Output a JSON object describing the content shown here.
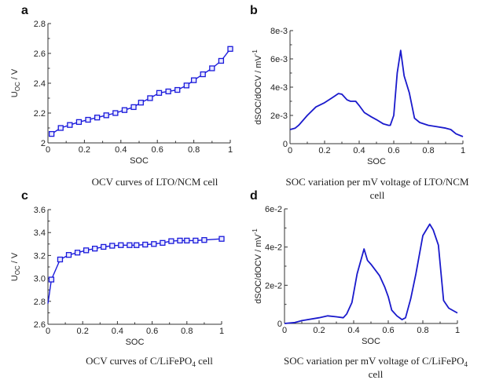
{
  "chart_data": [
    {
      "panel_label": "a",
      "type": "line",
      "markers": "square",
      "color": "#1a1adb",
      "xlabel": "SOC",
      "ylabel": {
        "main": "U",
        "sub": "OC",
        "rest": " / V"
      },
      "caption": [
        "OCV curves of LTO/NCM cell"
      ],
      "xlim": [
        0,
        1
      ],
      "ylim": [
        2,
        2.8
      ],
      "xticks": [
        0,
        0.2,
        0.4,
        0.6,
        0.8,
        1
      ],
      "xtick_labels": [
        "0",
        "0.2",
        "0.4",
        "0.6",
        "0.8",
        "1"
      ],
      "yticks": [
        2,
        2.2,
        2.4,
        2.6,
        2.8
      ],
      "ytick_labels": [
        "2",
        "2.2",
        "2.4",
        "2.6",
        "2.8"
      ],
      "grid": false,
      "x": [
        0.02,
        0.07,
        0.12,
        0.17,
        0.22,
        0.27,
        0.32,
        0.37,
        0.42,
        0.47,
        0.51,
        0.56,
        0.61,
        0.66,
        0.71,
        0.76,
        0.8,
        0.85,
        0.9,
        0.95,
        1.0
      ],
      "y": [
        2.06,
        2.1,
        2.12,
        2.14,
        2.155,
        2.17,
        2.185,
        2.2,
        2.22,
        2.24,
        2.27,
        2.3,
        2.335,
        2.345,
        2.355,
        2.385,
        2.42,
        2.46,
        2.5,
        2.55,
        2.63
      ]
    },
    {
      "panel_label": "b",
      "type": "line",
      "markers": "none",
      "color": "#1a1acc",
      "xlabel": "SOC",
      "ylabel": {
        "main": "dSOC/dOCV  /  mV",
        "sup": "-1"
      },
      "caption": [
        "SOC variation per mV voltage of LTO/NCM",
        "cell"
      ],
      "xlim": [
        0,
        1
      ],
      "ylim": [
        0,
        0.008
      ],
      "xticks": [
        0,
        0.2,
        0.4,
        0.6,
        0.8,
        1
      ],
      "xtick_labels": [
        "0",
        "0.2",
        "0.4",
        "0.6",
        "0.8",
        "1"
      ],
      "yticks": [
        0,
        0.002,
        0.004,
        0.006,
        0.008
      ],
      "ytick_labels": [
        "0",
        "2e-3",
        "4e-3",
        "6e-3",
        "8e-3"
      ],
      "grid": false,
      "x": [
        0,
        0.03,
        0.05,
        0.1,
        0.15,
        0.2,
        0.25,
        0.28,
        0.3,
        0.33,
        0.35,
        0.38,
        0.4,
        0.43,
        0.47,
        0.5,
        0.54,
        0.57,
        0.58,
        0.6,
        0.62,
        0.64,
        0.66,
        0.69,
        0.72,
        0.75,
        0.8,
        0.85,
        0.9,
        0.93,
        0.96,
        1.0
      ],
      "y": [
        0.001,
        0.0011,
        0.0013,
        0.002,
        0.0026,
        0.0029,
        0.0033,
        0.00355,
        0.0035,
        0.0031,
        0.003,
        0.003,
        0.0027,
        0.0022,
        0.0019,
        0.0017,
        0.0014,
        0.0013,
        0.0013,
        0.002,
        0.005,
        0.0066,
        0.0048,
        0.0036,
        0.0018,
        0.0015,
        0.0013,
        0.0012,
        0.0011,
        0.001,
        0.0007,
        0.0005
      ]
    },
    {
      "panel_label": "c",
      "type": "line",
      "markers": "square",
      "color": "#1a1adb",
      "xlabel": "SOC",
      "ylabel": {
        "main": "U",
        "sub": "OC",
        "rest": " / V"
      },
      "caption": [
        "OCV curves of C/LiFePO",
        "4",
        " cell"
      ],
      "xlim": [
        0,
        1
      ],
      "ylim": [
        2.6,
        3.6
      ],
      "xticks": [
        0,
        0.2,
        0.4,
        0.6,
        0.8,
        1
      ],
      "xtick_labels": [
        "0",
        "0.2",
        "0.4",
        "0.6",
        "0.8",
        "1"
      ],
      "yticks": [
        2.6,
        2.8,
        3.0,
        3.2,
        3.4,
        3.6
      ],
      "ytick_labels": [
        "2.6",
        "2.8",
        "3.0",
        "3.2",
        "3.4",
        "3.6"
      ],
      "grid": false,
      "x": [
        0,
        0.02,
        0.07,
        0.12,
        0.17,
        0.22,
        0.27,
        0.32,
        0.37,
        0.42,
        0.47,
        0.51,
        0.56,
        0.61,
        0.66,
        0.71,
        0.76,
        0.8,
        0.85,
        0.9,
        1.0
      ],
      "y": [
        2.78,
        2.99,
        3.165,
        3.205,
        3.225,
        3.245,
        3.26,
        3.275,
        3.285,
        3.29,
        3.29,
        3.29,
        3.295,
        3.3,
        3.31,
        3.325,
        3.33,
        3.33,
        3.33,
        3.335,
        3.345
      ]
    },
    {
      "panel_label": "d",
      "type": "line",
      "markers": "none",
      "color": "#1a1acc",
      "xlabel": "SOC",
      "ylabel": {
        "main": "dSOC/dOCV  /  mV",
        "sup": "-1"
      },
      "caption": [
        "SOC variation per mV voltage of C/LiFePO",
        "4",
        "cell"
      ],
      "xlim": [
        0,
        1
      ],
      "ylim": [
        0,
        0.06
      ],
      "xticks": [
        0,
        0.2,
        0.4,
        0.6,
        0.8,
        1
      ],
      "xtick_labels": [
        "0",
        "0.2",
        "0.4",
        "0.6",
        "0.8",
        "1"
      ],
      "yticks": [
        0,
        0.02,
        0.04,
        0.06
      ],
      "ytick_labels": [
        "0",
        "2e-2",
        "4e-2",
        "6e-2"
      ],
      "grid": false,
      "x": [
        0,
        0.06,
        0.1,
        0.2,
        0.25,
        0.3,
        0.34,
        0.36,
        0.39,
        0.42,
        0.46,
        0.48,
        0.5,
        0.55,
        0.58,
        0.6,
        0.62,
        0.65,
        0.68,
        0.7,
        0.73,
        0.76,
        0.8,
        0.84,
        0.86,
        0.89,
        0.92,
        0.95,
        1.0
      ],
      "y": [
        0,
        0.0005,
        0.0015,
        0.003,
        0.004,
        0.0035,
        0.003,
        0.005,
        0.011,
        0.026,
        0.039,
        0.033,
        0.031,
        0.025,
        0.019,
        0.014,
        0.007,
        0.004,
        0.002,
        0.003,
        0.013,
        0.026,
        0.046,
        0.052,
        0.049,
        0.041,
        0.012,
        0.008,
        0.0055
      ]
    }
  ]
}
